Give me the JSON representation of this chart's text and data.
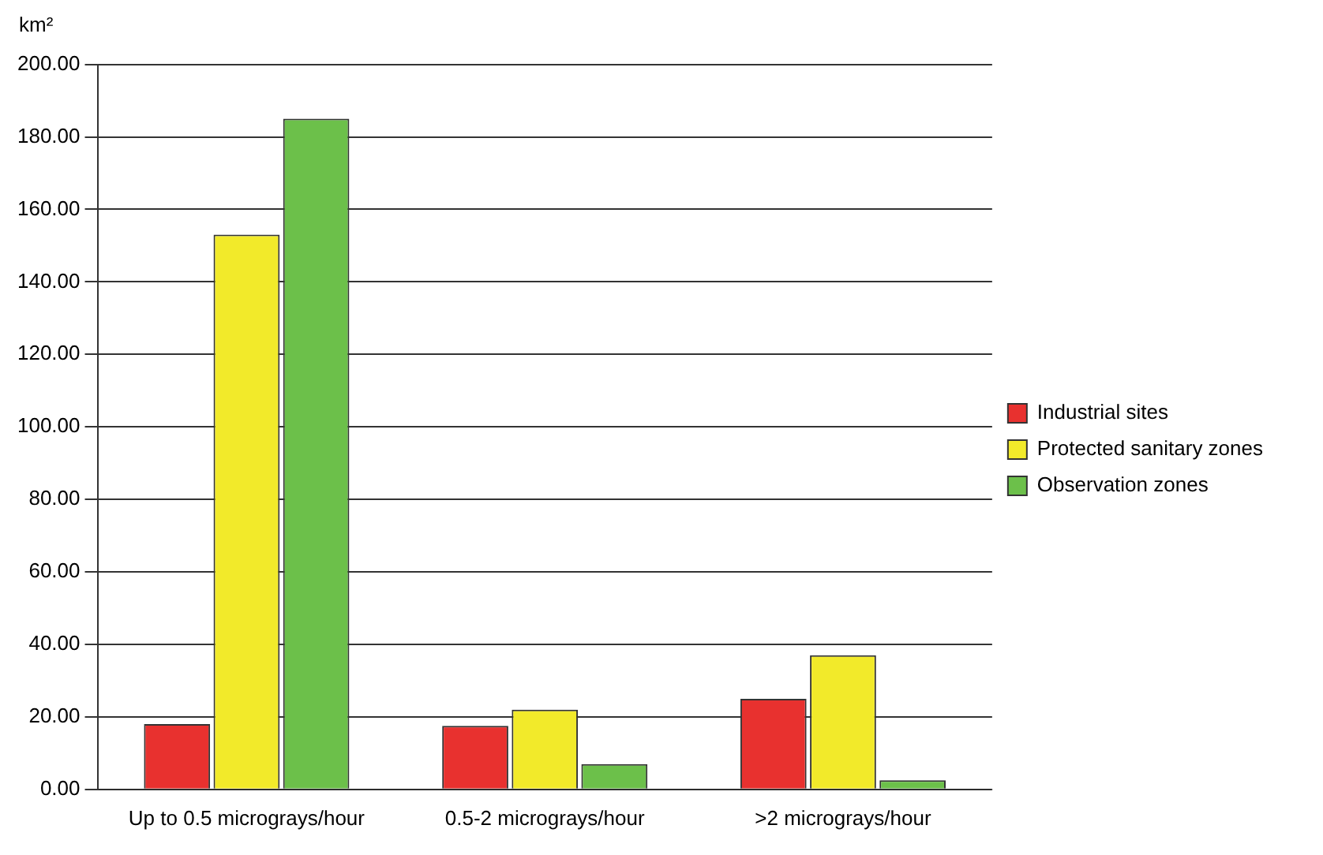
{
  "chart_data": {
    "type": "bar",
    "ylabel": "km²",
    "categories": [
      "Up to 0.5 micrograys/hour",
      "0.5-2 micrograys/hour",
      ">2 micrograys/hour"
    ],
    "series": [
      {
        "name": "Industrial sites",
        "color": "#e8312f",
        "values": [
          18,
          17.5,
          25
        ]
      },
      {
        "name": "Protected sanitary zones",
        "color": "#f2ea2a",
        "values": [
          153,
          22,
          37
        ]
      },
      {
        "name": "Observation zones",
        "color": "#6cc04a",
        "values": [
          185,
          7,
          2.5
        ]
      }
    ],
    "ylim": [
      0,
      200
    ],
    "yticks": [
      {
        "value": 0,
        "label": "0.00"
      },
      {
        "value": 20,
        "label": "20.00"
      },
      {
        "value": 40,
        "label": "40.00"
      },
      {
        "value": 60,
        "label": "60.00"
      },
      {
        "value": 80,
        "label": "80.00"
      },
      {
        "value": 100,
        "label": "100.00"
      },
      {
        "value": 120,
        "label": "120.00"
      },
      {
        "value": 140,
        "label": "140.00"
      },
      {
        "value": 160,
        "label": "160.00"
      },
      {
        "value": 180,
        "label": "180.00"
      },
      {
        "value": 200,
        "label": "200.00"
      }
    ],
    "grid": "y",
    "legend": "right"
  }
}
